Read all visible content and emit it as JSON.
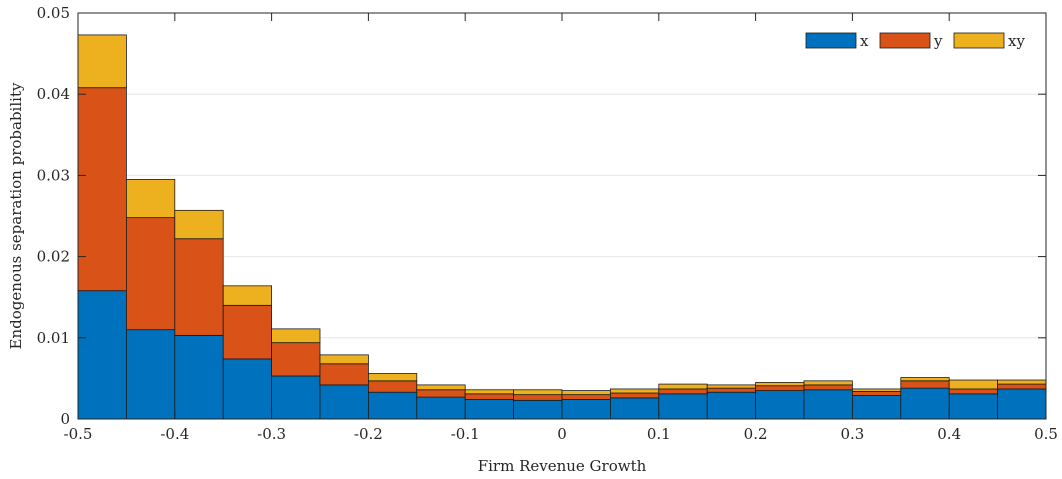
{
  "chart_data": {
    "type": "bar",
    "stacked": true,
    "title": "",
    "xlabel": "Firm Revenue Growth",
    "ylabel": "Endogenous separation probability",
    "xlim": [
      -0.5,
      0.5
    ],
    "ylim": [
      0,
      0.05
    ],
    "grid": "horizontal",
    "legend_position": "top-right",
    "bin_edges": [
      -0.5,
      -0.45,
      -0.4,
      -0.35,
      -0.3,
      -0.25,
      -0.2,
      -0.15,
      -0.1,
      -0.05,
      0,
      0.05,
      0.1,
      0.15,
      0.2,
      0.25,
      0.3,
      0.35,
      0.4,
      0.45,
      0.5
    ],
    "x_ticks": [
      "-0.5",
      "-0.4",
      "-0.3",
      "-0.2",
      "-0.1",
      "0",
      "0.1",
      "0.2",
      "0.3",
      "0.4",
      "0.5"
    ],
    "y_ticks": [
      "0",
      "0.01",
      "0.02",
      "0.03",
      "0.04",
      "0.05"
    ],
    "series": [
      {
        "name": "x",
        "color": "#0072BD",
        "values": [
          0.0158,
          0.011,
          0.0103,
          0.0074,
          0.0053,
          0.0042,
          0.0033,
          0.0027,
          0.0024,
          0.0023,
          0.0024,
          0.0026,
          0.0031,
          0.0033,
          0.0035,
          0.0036,
          0.0029,
          0.0038,
          0.0031,
          0.0037
        ]
      },
      {
        "name": "y",
        "color": "#D95319",
        "values": [
          0.025,
          0.0138,
          0.0119,
          0.0066,
          0.0041,
          0.0026,
          0.0014,
          0.0009,
          0.0007,
          0.0007,
          0.0006,
          0.0006,
          0.0006,
          0.0005,
          0.0006,
          0.0006,
          0.0005,
          0.0009,
          0.0006,
          0.0006
        ]
      },
      {
        "name": "xy",
        "color": "#EDB120",
        "values": [
          0.0065,
          0.0047,
          0.0035,
          0.0024,
          0.0017,
          0.0011,
          0.0009,
          0.0006,
          0.0005,
          0.0006,
          0.0005,
          0.0005,
          0.0006,
          0.0004,
          0.0004,
          0.0005,
          0.0003,
          0.0004,
          0.0011,
          0.0005
        ]
      }
    ]
  }
}
